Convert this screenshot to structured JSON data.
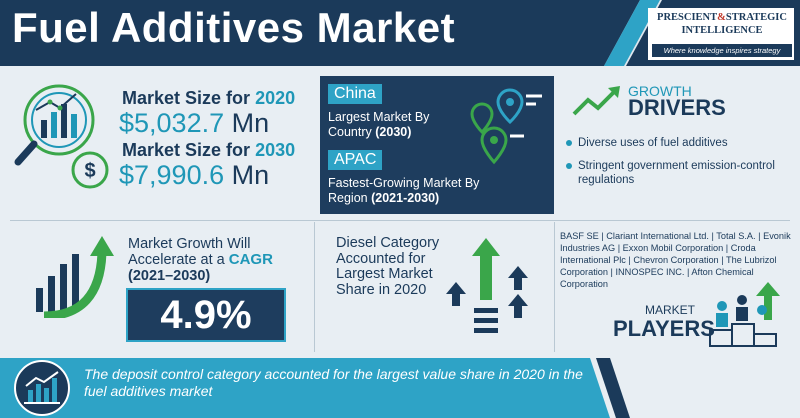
{
  "header": {
    "title": "Fuel Additives Market",
    "logo": {
      "line1_a": "PRESCIENT",
      "line1_amp": "&",
      "line1_b": "STRATEGIC",
      "line2": "INTELLIGENCE",
      "tagline": "Where knowledge inspires strategy"
    }
  },
  "market_size": {
    "label_prefix": "Market Size for",
    "items": [
      {
        "year": "2020",
        "value": "$5,032.7",
        "unit": "Mn"
      },
      {
        "year": "2030",
        "value": "$7,990.6",
        "unit": "Mn"
      }
    ]
  },
  "regions": {
    "china": {
      "tag": "China",
      "text": "Largest Market By Country",
      "period": "(2030)"
    },
    "apac": {
      "tag": "APAC",
      "text": "Fastest-Growing Market By Region",
      "period": "(2021-2030)"
    }
  },
  "growth_drivers": {
    "title_small": "GROWTH",
    "title_big": "DRIVERS",
    "items": [
      "Diverse uses of fuel additives",
      "Stringent government emission-control regulations"
    ]
  },
  "cagr": {
    "line1": "Market Growth Will",
    "line2": "Accelerate at a",
    "highlight": "CAGR",
    "years": "(2021–2030)",
    "value": "4.9%"
  },
  "category": {
    "text": "Diesel Category Accounted for Largest Market Share in 2020"
  },
  "players": {
    "list": "BASF SE | Clariant International Ltd. | Total S.A. | Evonik Industries AG | Exxon Mobil Corporation | Croda International Plc | Chevron Corporation | The Lubrizol Corporation | INNOSPEC INC. | Afton Chemical Corporation",
    "title_small": "MARKET",
    "title_big": "PLAYERS"
  },
  "footer": {
    "text": "The deposit control category accounted for the largest value share in 2020 in the fuel additives market"
  },
  "colors": {
    "navy": "#1b3a5a",
    "teal": "#1f97b7",
    "panel": "#1e3d5e",
    "accent": "#2ea3c6",
    "green": "#3aa64a",
    "background": "#e8eef3"
  },
  "icons": [
    "magnifier-chart-icon",
    "dollar-coin-icon",
    "map-pin-icon",
    "growth-arrow-icon",
    "bar-growth-icon",
    "up-arrows-icon",
    "players-podium-icon",
    "chart-footer-icon"
  ]
}
